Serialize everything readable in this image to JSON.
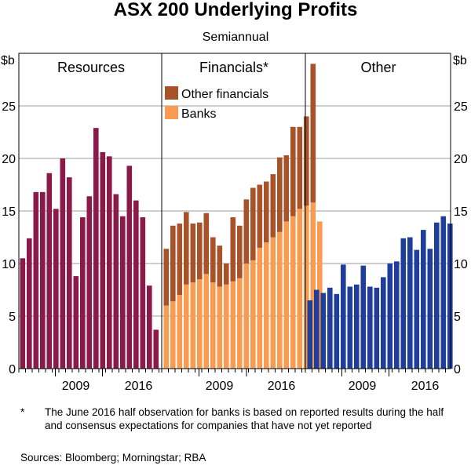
{
  "title": "ASX 200 Underlying Profits",
  "subtitle": "Semiannual",
  "unit_label": "$b",
  "footnote_marker": "*",
  "footnote": "The June 2016 half observation for banks is based on reported results during the half and consensus expectations for companies that have not yet reported",
  "sources": "Sources:  Bloomberg; Morningstar; RBA",
  "colors": {
    "resources": "#8B1A4A",
    "other_financials": "#A8522A",
    "banks": "#F99C52",
    "other": "#1F3E9C",
    "gridline": "#9E9E9E"
  },
  "chart_data": [
    {
      "type": "bar",
      "title": "Resources",
      "period": "semiannual",
      "first_half": "Jun 2004",
      "tick_labels": [
        "2009",
        "2016"
      ],
      "yticks": [
        "0",
        "5",
        "10",
        "15",
        "20",
        "25"
      ],
      "ylim": [
        0,
        30
      ],
      "ylabel": "$b",
      "series": [
        {
          "name": "Resources",
          "values": [
            10.5,
            12.4,
            16.8,
            16.8,
            18.6,
            15.2,
            20.0,
            18.2,
            8.8,
            14.4,
            16.4,
            22.9,
            20.6,
            20.2,
            16.6,
            14.5,
            19.3,
            16.0,
            14.4,
            7.9,
            3.7
          ]
        }
      ]
    },
    {
      "type": "bar",
      "stacked": true,
      "title": "Financials*",
      "period": "semiannual",
      "first_half": "Jun 2004",
      "tick_labels": [
        "2009",
        "2016"
      ],
      "legend": [
        "Other financials",
        "Banks"
      ],
      "ylim": [
        0,
        30
      ],
      "series": [
        {
          "name": "Banks",
          "values": [
            6.0,
            6.4,
            7.0,
            8.0,
            8.2,
            8.5,
            9.0,
            8.2,
            7.8,
            8.0,
            8.3,
            8.6,
            10.0,
            10.3,
            11.5,
            12.0,
            12.5,
            13.0,
            14.0,
            14.5,
            15.2,
            15.5,
            15.8,
            14.0
          ]
        },
        {
          "name": "Other financials",
          "values": [
            5.4,
            7.2,
            6.8,
            6.9,
            5.6,
            5.4,
            5.8,
            4.3,
            3.9,
            2.0,
            6.1,
            5.0,
            6.1,
            6.9,
            6.0,
            5.8,
            6.0,
            7.1,
            6.3,
            8.5,
            7.8,
            8.5,
            13.2,
            0.0
          ]
        }
      ]
    },
    {
      "type": "bar",
      "title": "Other",
      "period": "semiannual",
      "first_half": "Jun 2004",
      "tick_labels": [
        "2009",
        "2016"
      ],
      "yticks": [
        "0",
        "5",
        "10",
        "15",
        "20",
        "25"
      ],
      "ylim": [
        0,
        30
      ],
      "ylabel": "$b",
      "series": [
        {
          "name": "Other",
          "values": [
            6.5,
            7.5,
            7.2,
            7.7,
            7.1,
            9.9,
            7.8,
            8.0,
            9.8,
            7.8,
            7.7,
            8.7,
            10.0,
            10.2,
            12.4,
            12.5,
            11.3,
            13.2,
            11.4,
            13.9,
            14.5,
            13.8
          ]
        }
      ]
    }
  ]
}
